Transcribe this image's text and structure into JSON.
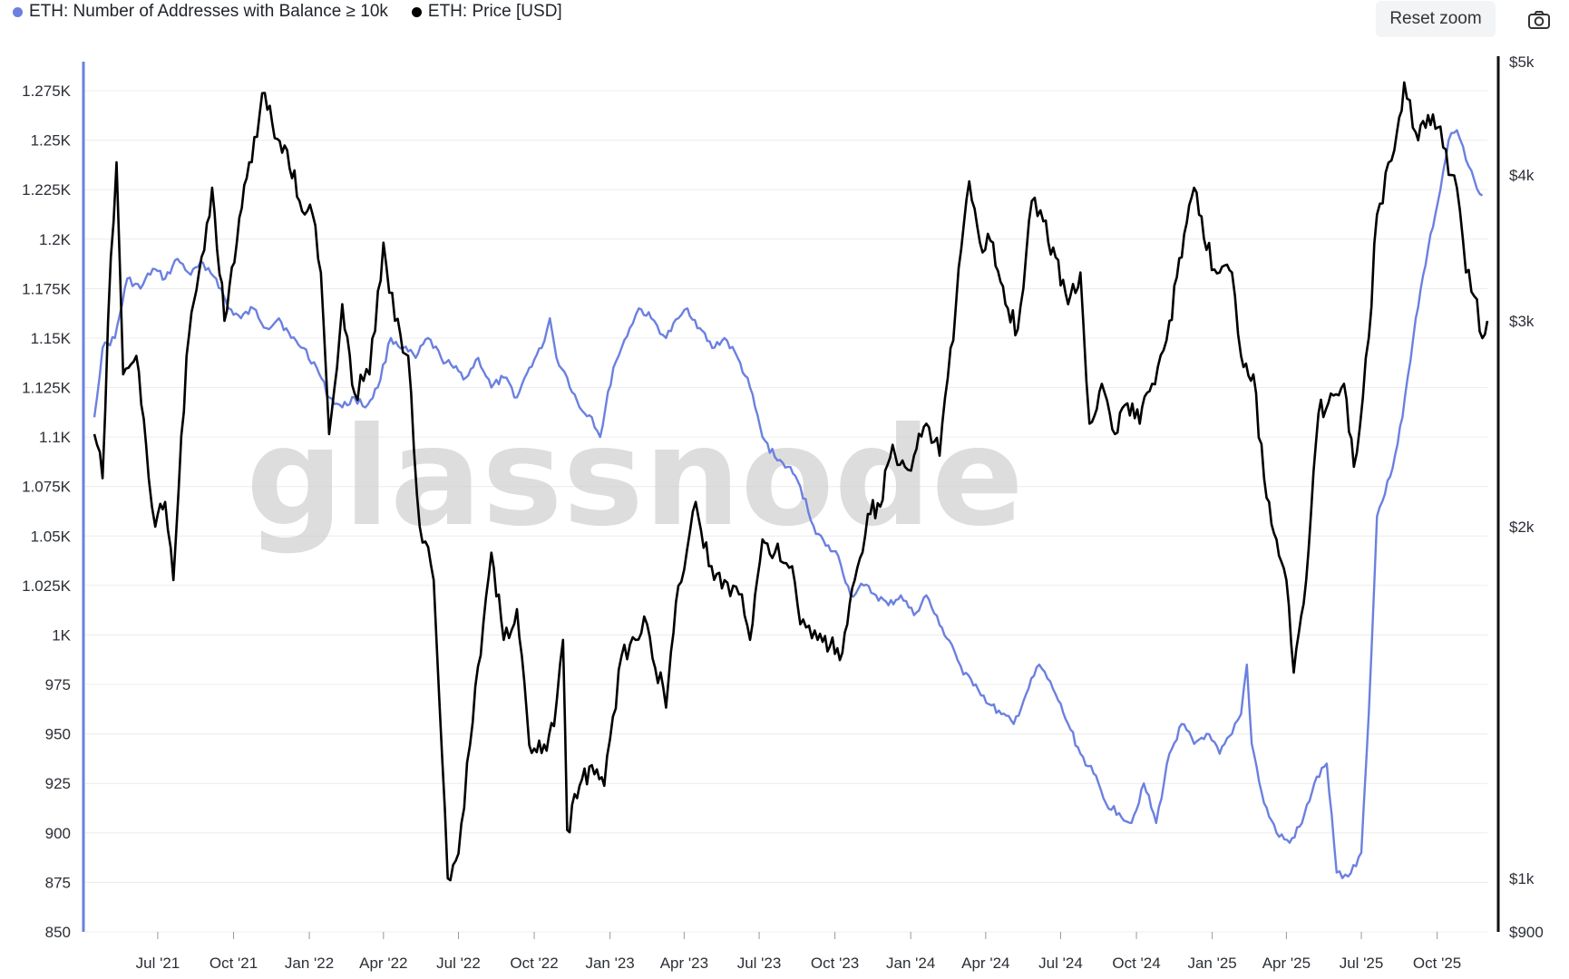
{
  "legend": {
    "series1": "ETH: Number of Addresses with Balance ≥ 10k",
    "series2": "ETH: Price [USD]"
  },
  "toolbar": {
    "reset_zoom": "Reset zoom",
    "camera_icon": "camera-icon"
  },
  "watermark": "glassnode",
  "colors": {
    "addresses": "#6b80e0",
    "price": "#000000",
    "grid": "#ececec"
  },
  "chart_data": {
    "type": "line",
    "x_labels": [
      "Jul '21",
      "Oct '21",
      "Jan '22",
      "Apr '22",
      "Jul '22",
      "Oct '22",
      "Jan '23",
      "Apr '23",
      "Jul '23",
      "Oct '23",
      "Jan '24",
      "Apr '24",
      "Jul '24",
      "Oct '24",
      "Jan '25",
      "Apr '25",
      "Jul '25",
      "Oct '25"
    ],
    "x_range": [
      "2021-04-15",
      "2025-12-01"
    ],
    "y_left": {
      "ticks": [
        "1.275K",
        "1.25K",
        "1.225K",
        "1.2K",
        "1.175K",
        "1.15K",
        "1.125K",
        "1.1K",
        "1.075K",
        "1.05K",
        "1.025K",
        "1K",
        "975",
        "950",
        "925",
        "900",
        "875",
        "850"
      ],
      "ylim": [
        850,
        1275
      ]
    },
    "y_right": {
      "scale": "log",
      "ticks": [
        "$5k",
        "$4k",
        "$3k",
        "$2k",
        "$1k",
        "$900"
      ],
      "tick_values": [
        5000,
        4000,
        3000,
        2000,
        1000,
        900
      ],
      "ylim": [
        900,
        5000
      ]
    },
    "series": [
      {
        "name": "ETH: Number of Addresses with Balance ≥ 10k",
        "axis": "left",
        "points": [
          [
            "2021-04-15",
            1110
          ],
          [
            "2021-04-25",
            1145
          ],
          [
            "2021-05-10",
            1150
          ],
          [
            "2021-05-25",
            1180
          ],
          [
            "2021-06-10",
            1175
          ],
          [
            "2021-06-25",
            1185
          ],
          [
            "2021-07-10",
            1180
          ],
          [
            "2021-07-25",
            1190
          ],
          [
            "2021-08-10",
            1182
          ],
          [
            "2021-08-25",
            1188
          ],
          [
            "2021-09-10",
            1180
          ],
          [
            "2021-09-25",
            1165
          ],
          [
            "2021-10-10",
            1160
          ],
          [
            "2021-10-25",
            1165
          ],
          [
            "2021-11-10",
            1155
          ],
          [
            "2021-11-25",
            1160
          ],
          [
            "2021-12-10",
            1150
          ],
          [
            "2021-12-25",
            1145
          ],
          [
            "2022-01-10",
            1135
          ],
          [
            "2022-01-25",
            1120
          ],
          [
            "2022-02-10",
            1115
          ],
          [
            "2022-02-25",
            1120
          ],
          [
            "2022-03-10",
            1115
          ],
          [
            "2022-03-25",
            1125
          ],
          [
            "2022-04-10",
            1150
          ],
          [
            "2022-04-25",
            1145
          ],
          [
            "2022-05-10",
            1140
          ],
          [
            "2022-05-25",
            1150
          ],
          [
            "2022-06-10",
            1140
          ],
          [
            "2022-06-25",
            1135
          ],
          [
            "2022-07-10",
            1130
          ],
          [
            "2022-07-25",
            1140
          ],
          [
            "2022-08-10",
            1125
          ],
          [
            "2022-08-25",
            1130
          ],
          [
            "2022-09-10",
            1120
          ],
          [
            "2022-09-25",
            1135
          ],
          [
            "2022-10-10",
            1145
          ],
          [
            "2022-10-20",
            1160
          ],
          [
            "2022-10-28",
            1140
          ],
          [
            "2022-11-10",
            1130
          ],
          [
            "2022-11-25",
            1115
          ],
          [
            "2022-12-10",
            1110
          ],
          [
            "2022-12-20",
            1100
          ],
          [
            "2023-01-05",
            1135
          ],
          [
            "2023-01-15",
            1145
          ],
          [
            "2023-01-25",
            1155
          ],
          [
            "2023-02-05",
            1165
          ],
          [
            "2023-02-20",
            1160
          ],
          [
            "2023-03-10",
            1150
          ],
          [
            "2023-03-25",
            1160
          ],
          [
            "2023-04-05",
            1165
          ],
          [
            "2023-04-20",
            1155
          ],
          [
            "2023-05-05",
            1145
          ],
          [
            "2023-05-20",
            1150
          ],
          [
            "2023-06-05",
            1140
          ],
          [
            "2023-06-20",
            1125
          ],
          [
            "2023-07-05",
            1100
          ],
          [
            "2023-07-20",
            1090
          ],
          [
            "2023-08-05",
            1085
          ],
          [
            "2023-08-20",
            1075
          ],
          [
            "2023-09-05",
            1055
          ],
          [
            "2023-09-20",
            1045
          ],
          [
            "2023-10-05",
            1040
          ],
          [
            "2023-10-20",
            1020
          ],
          [
            "2023-11-05",
            1025
          ],
          [
            "2023-11-20",
            1020
          ],
          [
            "2023-12-05",
            1015
          ],
          [
            "2023-12-20",
            1020
          ],
          [
            "2024-01-05",
            1010
          ],
          [
            "2024-01-20",
            1020
          ],
          [
            "2024-02-05",
            1005
          ],
          [
            "2024-02-20",
            995
          ],
          [
            "2024-03-05",
            980
          ],
          [
            "2024-03-20",
            975
          ],
          [
            "2024-04-05",
            965
          ],
          [
            "2024-04-20",
            960
          ],
          [
            "2024-05-05",
            955
          ],
          [
            "2024-05-20",
            970
          ],
          [
            "2024-06-05",
            985
          ],
          [
            "2024-06-15",
            978
          ],
          [
            "2024-06-25",
            970
          ],
          [
            "2024-07-10",
            955
          ],
          [
            "2024-07-25",
            940
          ],
          [
            "2024-08-10",
            930
          ],
          [
            "2024-08-25",
            915
          ],
          [
            "2024-09-10",
            910
          ],
          [
            "2024-09-25",
            905
          ],
          [
            "2024-10-10",
            925
          ],
          [
            "2024-10-25",
            905
          ],
          [
            "2024-11-10",
            940
          ],
          [
            "2024-11-25",
            955
          ],
          [
            "2024-12-10",
            945
          ],
          [
            "2024-12-25",
            950
          ],
          [
            "2025-01-10",
            940
          ],
          [
            "2025-01-25",
            950
          ],
          [
            "2025-02-05",
            960
          ],
          [
            "2025-02-12",
            985
          ],
          [
            "2025-02-18",
            945
          ],
          [
            "2025-03-05",
            915
          ],
          [
            "2025-03-20",
            900
          ],
          [
            "2025-04-05",
            895
          ],
          [
            "2025-04-20",
            905
          ],
          [
            "2025-05-05",
            925
          ],
          [
            "2025-05-20",
            935
          ],
          [
            "2025-06-01",
            880
          ],
          [
            "2025-06-15",
            878
          ],
          [
            "2025-07-01",
            890
          ],
          [
            "2025-07-10",
            960
          ],
          [
            "2025-07-20",
            1060
          ],
          [
            "2025-08-05",
            1080
          ],
          [
            "2025-08-20",
            1110
          ],
          [
            "2025-09-05",
            1160
          ],
          [
            "2025-09-20",
            1195
          ],
          [
            "2025-10-05",
            1225
          ],
          [
            "2025-10-15",
            1250
          ],
          [
            "2025-10-25",
            1255
          ],
          [
            "2025-11-05",
            1240
          ],
          [
            "2025-11-15",
            1230
          ],
          [
            "2025-11-25",
            1222
          ]
        ]
      },
      {
        "name": "ETH: Price [USD]",
        "axis": "right",
        "points": [
          [
            "2021-04-15",
            2400
          ],
          [
            "2021-04-25",
            2200
          ],
          [
            "2021-05-05",
            3400
          ],
          [
            "2021-05-12",
            4100
          ],
          [
            "2021-05-20",
            2700
          ],
          [
            "2021-06-05",
            2800
          ],
          [
            "2021-06-20",
            2200
          ],
          [
            "2021-06-28",
            2000
          ],
          [
            "2021-07-10",
            2100
          ],
          [
            "2021-07-20",
            1800
          ],
          [
            "2021-08-05",
            2800
          ],
          [
            "2021-08-20",
            3300
          ],
          [
            "2021-09-05",
            3900
          ],
          [
            "2021-09-20",
            3000
          ],
          [
            "2021-10-05",
            3500
          ],
          [
            "2021-10-20",
            4100
          ],
          [
            "2021-11-08",
            4700
          ],
          [
            "2021-11-20",
            4300
          ],
          [
            "2021-12-05",
            4200
          ],
          [
            "2021-12-20",
            3800
          ],
          [
            "2022-01-05",
            3700
          ],
          [
            "2022-01-15",
            3300
          ],
          [
            "2022-01-25",
            2400
          ],
          [
            "2022-02-10",
            3100
          ],
          [
            "2022-02-25",
            2600
          ],
          [
            "2022-03-15",
            2700
          ],
          [
            "2022-04-01",
            3500
          ],
          [
            "2022-04-15",
            3000
          ],
          [
            "2022-05-01",
            2800
          ],
          [
            "2022-05-15",
            2000
          ],
          [
            "2022-06-01",
            1800
          ],
          [
            "2022-06-18",
            1000
          ],
          [
            "2022-07-01",
            1050
          ],
          [
            "2022-07-15",
            1300
          ],
          [
            "2022-08-10",
            1900
          ],
          [
            "2022-08-25",
            1600
          ],
          [
            "2022-09-10",
            1700
          ],
          [
            "2022-09-25",
            1300
          ],
          [
            "2022-10-10",
            1280
          ],
          [
            "2022-10-25",
            1350
          ],
          [
            "2022-11-05",
            1600
          ],
          [
            "2022-11-10",
            1100
          ],
          [
            "2022-11-25",
            1200
          ],
          [
            "2022-12-10",
            1250
          ],
          [
            "2022-12-25",
            1200
          ],
          [
            "2023-01-15",
            1550
          ],
          [
            "2023-02-01",
            1600
          ],
          [
            "2023-02-15",
            1650
          ],
          [
            "2023-03-10",
            1400
          ],
          [
            "2023-03-25",
            1780
          ],
          [
            "2023-04-15",
            2100
          ],
          [
            "2023-05-01",
            1850
          ],
          [
            "2023-05-20",
            1800
          ],
          [
            "2023-06-10",
            1750
          ],
          [
            "2023-06-20",
            1600
          ],
          [
            "2023-07-05",
            1950
          ],
          [
            "2023-07-20",
            1900
          ],
          [
            "2023-08-10",
            1850
          ],
          [
            "2023-08-20",
            1650
          ],
          [
            "2023-09-10",
            1600
          ],
          [
            "2023-09-25",
            1580
          ],
          [
            "2023-10-10",
            1560
          ],
          [
            "2023-10-25",
            1800
          ],
          [
            "2023-11-10",
            2050
          ],
          [
            "2023-11-25",
            2080
          ],
          [
            "2023-12-10",
            2350
          ],
          [
            "2023-12-25",
            2250
          ],
          [
            "2024-01-05",
            2300
          ],
          [
            "2024-01-20",
            2450
          ],
          [
            "2024-02-05",
            2300
          ],
          [
            "2024-02-25",
            3100
          ],
          [
            "2024-03-12",
            3950
          ],
          [
            "2024-03-25",
            3500
          ],
          [
            "2024-04-10",
            3500
          ],
          [
            "2024-04-25",
            3100
          ],
          [
            "2024-05-10",
            2950
          ],
          [
            "2024-05-27",
            3800
          ],
          [
            "2024-06-10",
            3650
          ],
          [
            "2024-06-25",
            3400
          ],
          [
            "2024-07-10",
            3100
          ],
          [
            "2024-07-25",
            3300
          ],
          [
            "2024-08-05",
            2450
          ],
          [
            "2024-08-20",
            2650
          ],
          [
            "2024-09-05",
            2400
          ],
          [
            "2024-09-20",
            2550
          ],
          [
            "2024-10-05",
            2450
          ],
          [
            "2024-10-20",
            2650
          ],
          [
            "2024-11-10",
            3000
          ],
          [
            "2024-11-25",
            3400
          ],
          [
            "2024-12-10",
            3900
          ],
          [
            "2024-12-25",
            3450
          ],
          [
            "2025-01-10",
            3300
          ],
          [
            "2025-01-25",
            3300
          ],
          [
            "2025-02-05",
            2800
          ],
          [
            "2025-02-20",
            2700
          ],
          [
            "2025-03-05",
            2200
          ],
          [
            "2025-03-20",
            1950
          ],
          [
            "2025-04-01",
            1800
          ],
          [
            "2025-04-10",
            1500
          ],
          [
            "2025-04-25",
            1800
          ],
          [
            "2025-05-10",
            2500
          ],
          [
            "2025-05-25",
            2600
          ],
          [
            "2025-06-10",
            2650
          ],
          [
            "2025-06-22",
            2250
          ],
          [
            "2025-07-10",
            2900
          ],
          [
            "2025-07-20",
            3700
          ],
          [
            "2025-08-10",
            4200
          ],
          [
            "2025-08-22",
            4800
          ],
          [
            "2025-09-05",
            4350
          ],
          [
            "2025-09-20",
            4500
          ],
          [
            "2025-10-05",
            4400
          ],
          [
            "2025-10-15",
            4000
          ],
          [
            "2025-10-25",
            3900
          ],
          [
            "2025-11-05",
            3300
          ],
          [
            "2025-11-15",
            3150
          ],
          [
            "2025-11-25",
            2900
          ],
          [
            "2025-12-01",
            3000
          ]
        ]
      }
    ]
  }
}
